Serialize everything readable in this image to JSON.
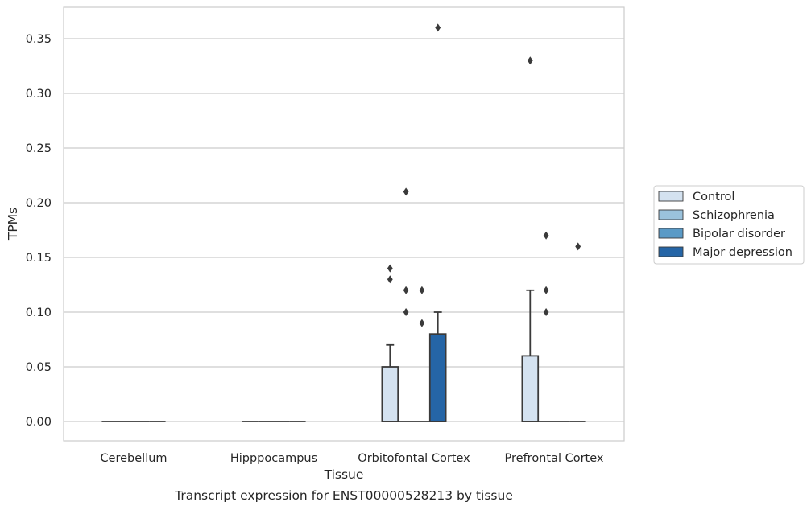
{
  "chart_data": {
    "type": "box",
    "xlabel": "Tissue",
    "ylabel": "TPMs",
    "caption": "Transcript expression for ENST00000528213 by tissue",
    "categories": [
      "Cerebellum",
      "Hipppocampus",
      "Orbitofontal Cortex",
      "Prefrontal Cortex"
    ],
    "yticks": [
      "0.00",
      "0.05",
      "0.10",
      "0.15",
      "0.20",
      "0.25",
      "0.30",
      "0.35"
    ],
    "ylim": [
      -0.018,
      0.378
    ],
    "grid": true,
    "legend_position": "right",
    "series": [
      {
        "name": "Control",
        "color": "#d4e2f0",
        "boxes": [
          {
            "q1": 0,
            "median": 0,
            "q3": 0,
            "whislo": 0,
            "whishi": 0,
            "fliers": []
          },
          {
            "q1": 0,
            "median": 0,
            "q3": 0,
            "whislo": 0,
            "whishi": 0,
            "fliers": []
          },
          {
            "q1": 0,
            "median": 0,
            "q3": 0.05,
            "whislo": 0,
            "whishi": 0.07,
            "fliers": [
              0.13,
              0.14
            ]
          },
          {
            "q1": 0,
            "median": 0,
            "q3": 0.06,
            "whislo": 0,
            "whishi": 0.12,
            "fliers": [
              0.33
            ]
          }
        ]
      },
      {
        "name": "Schizophrenia",
        "color": "#9ac2dc",
        "boxes": [
          {
            "q1": 0,
            "median": 0,
            "q3": 0,
            "whislo": 0,
            "whishi": 0,
            "fliers": []
          },
          {
            "q1": 0,
            "median": 0,
            "q3": 0,
            "whislo": 0,
            "whishi": 0,
            "fliers": []
          },
          {
            "q1": 0,
            "median": 0,
            "q3": 0,
            "whislo": 0,
            "whishi": 0,
            "fliers": [
              0.1,
              0.12,
              0.21
            ]
          },
          {
            "q1": 0,
            "median": 0,
            "q3": 0,
            "whislo": 0,
            "whishi": 0,
            "fliers": [
              0.1,
              0.12,
              0.17
            ]
          }
        ]
      },
      {
        "name": "Bipolar disorder",
        "color": "#5a9ac6",
        "boxes": [
          {
            "q1": 0,
            "median": 0,
            "q3": 0,
            "whislo": 0,
            "whishi": 0,
            "fliers": []
          },
          {
            "q1": 0,
            "median": 0,
            "q3": 0,
            "whislo": 0,
            "whishi": 0,
            "fliers": []
          },
          {
            "q1": 0,
            "median": 0,
            "q3": 0,
            "whislo": 0,
            "whishi": 0,
            "fliers": [
              0.09,
              0.12
            ]
          },
          {
            "q1": 0,
            "median": 0,
            "q3": 0,
            "whislo": 0,
            "whishi": 0,
            "fliers": []
          }
        ]
      },
      {
        "name": "Major depression",
        "color": "#2565a6",
        "boxes": [
          {
            "q1": 0,
            "median": 0,
            "q3": 0,
            "whislo": 0,
            "whishi": 0,
            "fliers": []
          },
          {
            "q1": 0,
            "median": 0,
            "q3": 0,
            "whislo": 0,
            "whishi": 0,
            "fliers": []
          },
          {
            "q1": 0,
            "median": 0,
            "q3": 0.08,
            "whislo": 0,
            "whishi": 0.1,
            "fliers": [
              0.36
            ]
          },
          {
            "q1": 0,
            "median": 0,
            "q3": 0,
            "whislo": 0,
            "whishi": 0,
            "fliers": [
              0.16
            ]
          }
        ]
      }
    ]
  }
}
